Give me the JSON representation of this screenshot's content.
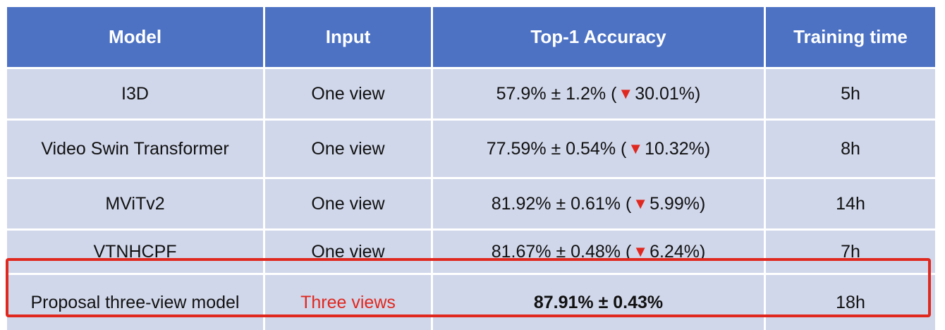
{
  "headers": {
    "model": "Model",
    "input": "Input",
    "accuracy": "Top-1 Accuracy",
    "time": "Training time"
  },
  "rows": [
    {
      "model": "I3D",
      "input": "One view",
      "acc_main": "57.9% ± 1.2% (",
      "delta": "30.01%)",
      "time": "5h"
    },
    {
      "model": "Video Swin Transformer",
      "input": "One view",
      "acc_main": "77.59% ± 0.54% (",
      "delta": "10.32%)",
      "time": "8h"
    },
    {
      "model": "MViTv2",
      "input": "One view",
      "acc_main": "81.92% ± 0.61% (",
      "delta": "5.99%)",
      "time": "14h"
    },
    {
      "model": "VTNHCPF",
      "input": "One view",
      "acc_main": "81.67% ± 0.48% (",
      "delta": "6.24%)",
      "time": "7h"
    },
    {
      "model": "Proposal three-view model",
      "input": "Three views",
      "acc_main": "87.91% ± 0.43%",
      "time": "18h"
    }
  ],
  "icons": {
    "decrease": "down-triangle-icon"
  },
  "colors": {
    "header_bg": "#4d72c4",
    "row_bg": "#d0d7ea",
    "highlight": "#e0281f"
  }
}
